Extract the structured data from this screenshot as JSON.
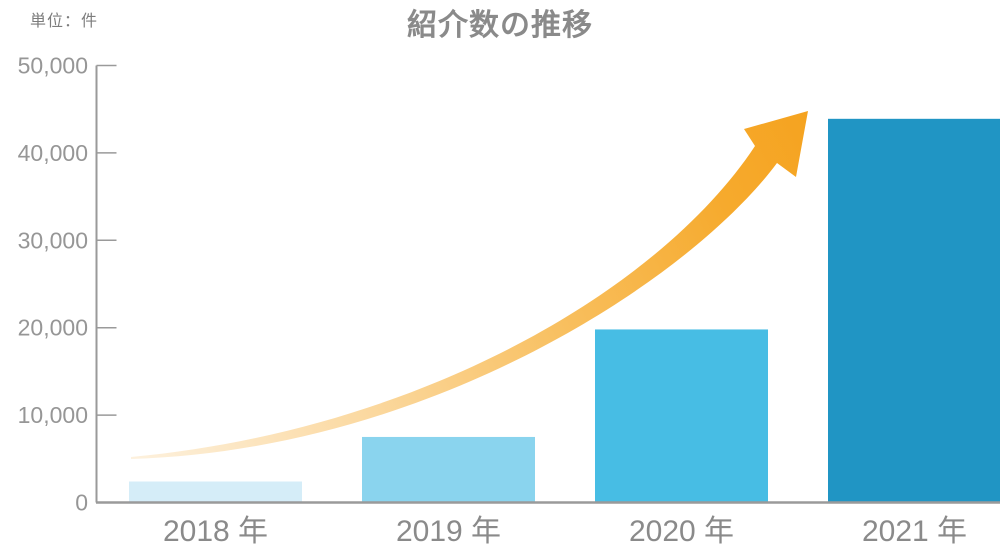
{
  "header": {
    "unit_label": "単位：件",
    "title": "紹介数の推移"
  },
  "chart_data": {
    "type": "bar",
    "title": "紹介数の推移",
    "unit": "件",
    "categories": [
      "2018 年",
      "2019 年",
      "2020 年",
      "2021 年"
    ],
    "values": [
      2400,
      7500,
      19800,
      43900
    ],
    "bar_colors": [
      "#D5EDF8",
      "#8AD4EE",
      "#47BDE4",
      "#2095C4"
    ],
    "ylim": [
      0,
      50000
    ],
    "yticks": [
      0,
      10000,
      20000,
      30000,
      40000,
      50000
    ],
    "ytick_labels": [
      "0",
      "10,000",
      "20,000",
      "30,000",
      "40,000",
      "50,000"
    ],
    "xlabel": "",
    "ylabel": "単位：件",
    "grid": false,
    "legend": null,
    "annotation": "growth-arrow",
    "colors": {
      "axis": "#9a9a9a",
      "ytick_text": "#969696",
      "xtick_text": "#8a8a8a",
      "title_text": "#8a8a8a",
      "arrow_tail": "#FDF1DE",
      "arrow_mid": "#F8BE5C",
      "arrow_head": "#F5A320"
    }
  }
}
